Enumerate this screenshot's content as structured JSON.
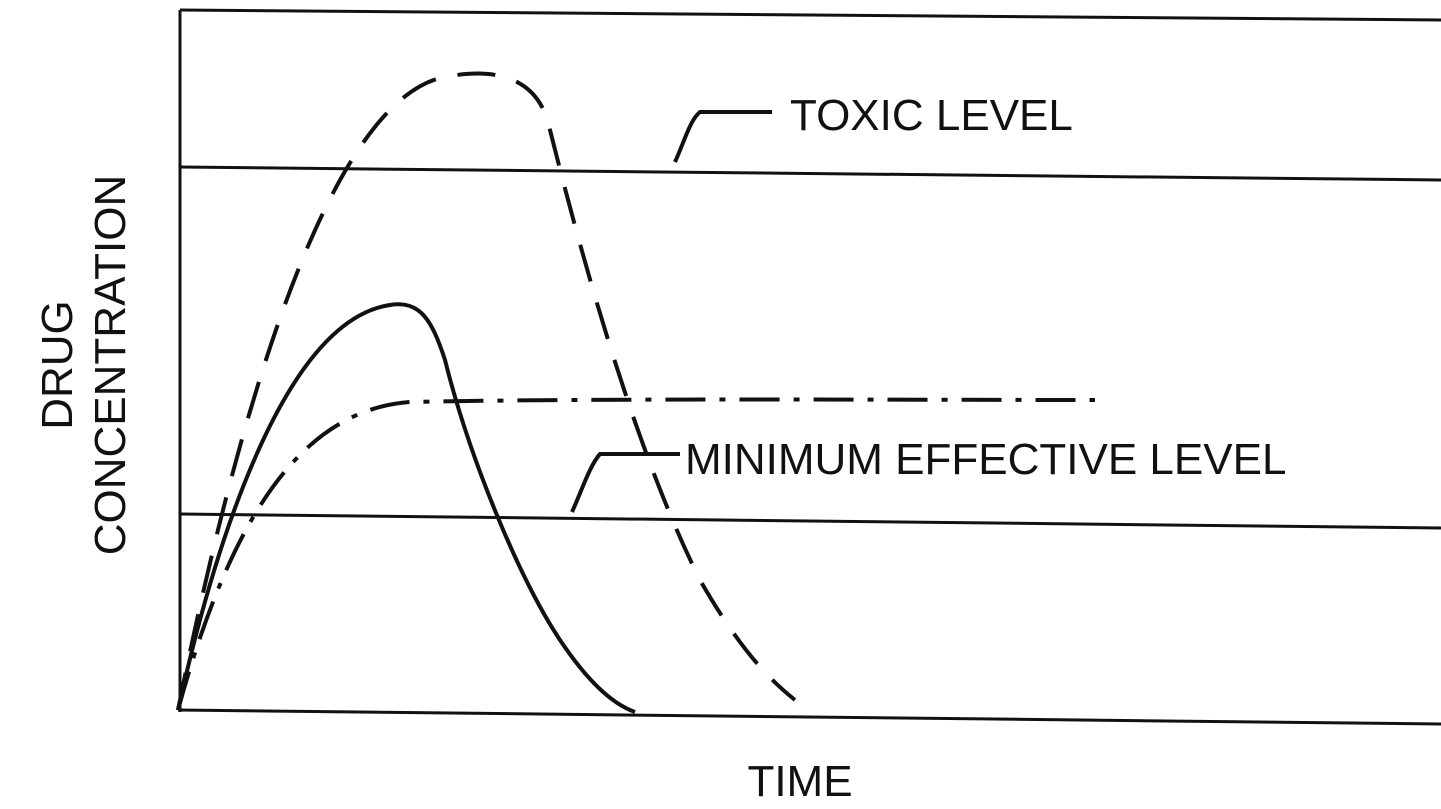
{
  "axes": {
    "y_label": [
      "DRUG",
      "CONCENTRATION"
    ],
    "x_label": "TIME"
  },
  "annotations": [
    "TOXIC LEVEL",
    "MINIMUM EFFECTIVE LEVEL"
  ]
}
